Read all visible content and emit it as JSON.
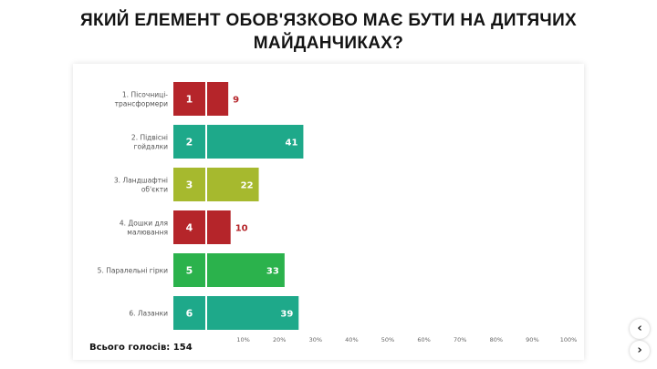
{
  "title": "ЯКИЙ ЕЛЕМЕНТ ОБОВ'ЯЗКОВО МАЄ БУТИ НА ДИТЯЧИХ МАЙДАНЧИКАХ?",
  "total_votes": "Всього голосів: 154",
  "nav": {
    "prev_icon": "chevron-left-icon",
    "next_icon": "chevron-right-icon",
    "prev": "‹",
    "next": "›"
  },
  "chart_data": {
    "type": "bar",
    "orientation": "horizontal",
    "title": "ЯКИЙ ЕЛЕМЕНТ ОБОВ'ЯЗКОВО МАЄ БУТИ НА ДИТЯЧИХ МАЙДАНЧИКАХ?",
    "categories": [
      {
        "number": "1",
        "label": [
          "1. Пісочниці-",
          "трансформери"
        ],
        "votes": 9,
        "color": "#b5252a"
      },
      {
        "number": "2",
        "label": [
          "2. Підвісні",
          "гойдалки"
        ],
        "votes": 41,
        "color": "#1ea98a"
      },
      {
        "number": "3",
        "label": [
          "3. Ландшафтні",
          "об'єкти"
        ],
        "votes": 22,
        "color": "#a6b92e"
      },
      {
        "number": "4",
        "label": [
          "4. Дошки для",
          "малювання"
        ],
        "votes": 10,
        "color": "#b5252a"
      },
      {
        "number": "5",
        "label": [
          "5. Паралельні гірки"
        ],
        "votes": 33,
        "color": "#2bb24c"
      },
      {
        "number": "6",
        "label": [
          "6. Лазанки"
        ],
        "votes": 39,
        "color": "#1ea98a"
      }
    ],
    "value_label_color_outside": "#b5252a",
    "value_label_color_inside": "#ffffff",
    "xlim": [
      0,
      100
    ],
    "x_ticks": [
      "10%",
      "20%",
      "30%",
      "40%",
      "50%",
      "60%",
      "70%",
      "80%",
      "90%",
      "100%"
    ],
    "grid": false
  }
}
